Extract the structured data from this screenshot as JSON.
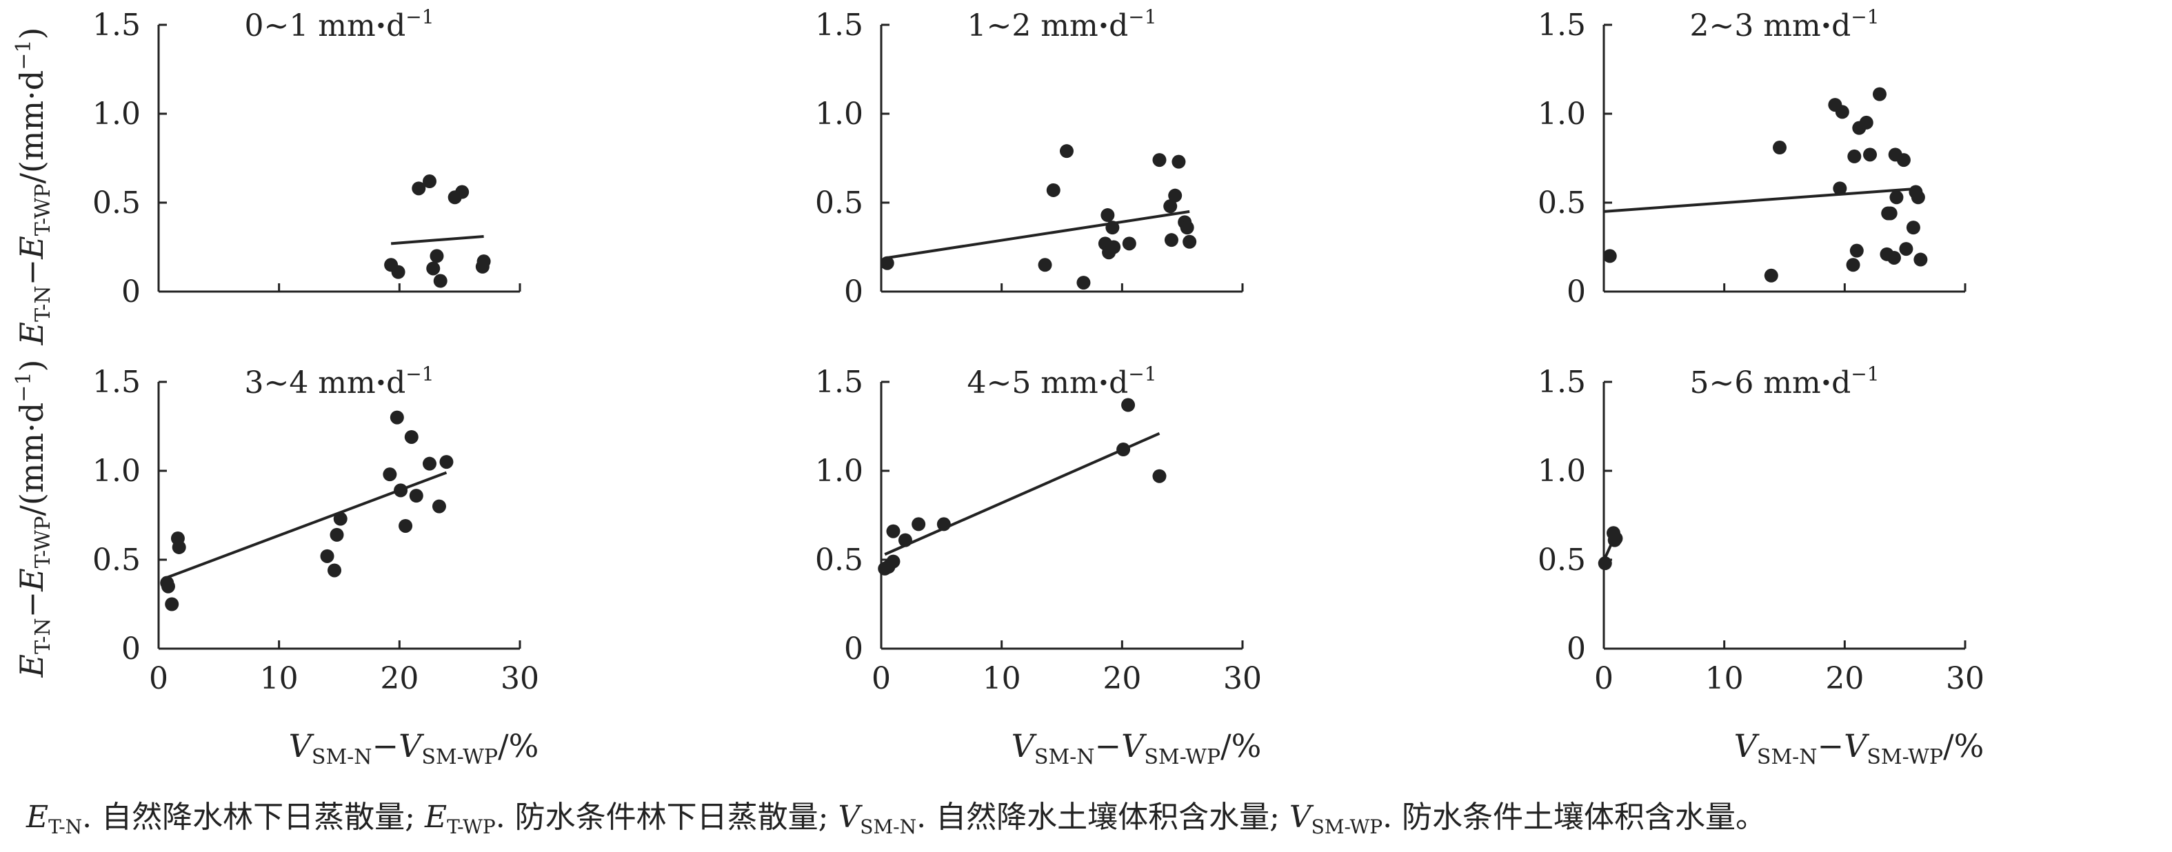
{
  "chart_data": [
    {
      "type": "scatter",
      "title": "0~1 mm·d⁻¹",
      "title_main": "0~1 mm",
      "title_unit": "d",
      "title_sup": "−1",
      "xlim": [
        0,
        30
      ],
      "ylim": [
        0,
        1.5
      ],
      "xticks": [
        "0",
        "10",
        "20",
        "30"
      ],
      "yticks": [
        "0",
        "0.5",
        "1.0",
        "1.5"
      ],
      "points": [
        [
          19.3,
          0.15
        ],
        [
          19.9,
          0.11
        ],
        [
          21.6,
          0.58
        ],
        [
          22.5,
          0.62
        ],
        [
          22.8,
          0.13
        ],
        [
          23.1,
          0.2
        ],
        [
          23.4,
          0.06
        ],
        [
          24.6,
          0.53
        ],
        [
          25.2,
          0.56
        ],
        [
          26.9,
          0.14
        ],
        [
          27.0,
          0.17
        ]
      ],
      "fit": [
        [
          19.3,
          0.27
        ],
        [
          27.0,
          0.31
        ]
      ]
    },
    {
      "type": "scatter",
      "title": "1~2 mm·d⁻¹",
      "title_main": "1~2 mm",
      "title_unit": "d",
      "title_sup": "−1",
      "xlim": [
        0,
        30
      ],
      "ylim": [
        0,
        1.5
      ],
      "xticks": [
        "0",
        "10",
        "20",
        "30"
      ],
      "yticks": [
        "0",
        "0.5",
        "1.0",
        "1.5"
      ],
      "points": [
        [
          0.5,
          0.16
        ],
        [
          13.6,
          0.15
        ],
        [
          14.3,
          0.57
        ],
        [
          15.4,
          0.79
        ],
        [
          16.8,
          0.05
        ],
        [
          18.6,
          0.27
        ],
        [
          18.8,
          0.43
        ],
        [
          18.9,
          0.22
        ],
        [
          19.2,
          0.36
        ],
        [
          19.3,
          0.25
        ],
        [
          20.6,
          0.27
        ],
        [
          23.1,
          0.74
        ],
        [
          24.0,
          0.48
        ],
        [
          24.1,
          0.29
        ],
        [
          24.4,
          0.54
        ],
        [
          24.7,
          0.73
        ],
        [
          25.2,
          0.39
        ],
        [
          25.4,
          0.36
        ],
        [
          25.6,
          0.28
        ]
      ],
      "fit": [
        [
          0.5,
          0.19
        ],
        [
          25.6,
          0.45
        ]
      ]
    },
    {
      "type": "scatter",
      "title": "2~3 mm·d⁻¹",
      "title_main": "2~3 mm",
      "title_unit": "d",
      "title_sup": "−1",
      "xlim": [
        0,
        30
      ],
      "ylim": [
        0,
        1.5
      ],
      "xticks": [
        "0",
        "10",
        "20",
        "30"
      ],
      "yticks": [
        "0",
        "0.5",
        "1.0",
        "1.5"
      ],
      "points": [
        [
          0.5,
          0.2
        ],
        [
          13.9,
          0.09
        ],
        [
          14.6,
          0.81
        ],
        [
          19.2,
          1.05
        ],
        [
          19.6,
          0.58
        ],
        [
          19.8,
          1.01
        ],
        [
          20.7,
          0.15
        ],
        [
          20.8,
          0.76
        ],
        [
          21.0,
          0.23
        ],
        [
          21.2,
          0.92
        ],
        [
          21.8,
          0.95
        ],
        [
          22.1,
          0.77
        ],
        [
          22.9,
          1.11
        ],
        [
          23.5,
          0.21
        ],
        [
          23.6,
          0.44
        ],
        [
          23.8,
          0.44
        ],
        [
          24.1,
          0.19
        ],
        [
          24.2,
          0.77
        ],
        [
          24.3,
          0.53
        ],
        [
          24.9,
          0.74
        ],
        [
          25.1,
          0.24
        ],
        [
          25.7,
          0.36
        ],
        [
          25.9,
          0.56
        ],
        [
          26.1,
          0.53
        ],
        [
          26.3,
          0.18
        ]
      ],
      "fit": [
        [
          0.0,
          0.45
        ],
        [
          26.3,
          0.58
        ]
      ]
    },
    {
      "type": "scatter",
      "title": "3~4 mm·d⁻¹",
      "title_main": "3~4 mm",
      "title_unit": "d",
      "title_sup": "−1",
      "xlim": [
        0,
        30
      ],
      "ylim": [
        0,
        1.5
      ],
      "xticks": [
        "0",
        "10",
        "20",
        "30"
      ],
      "yticks": [
        "0",
        "0.5",
        "1.0",
        "1.5"
      ],
      "points": [
        [
          0.7,
          0.37
        ],
        [
          0.8,
          0.35
        ],
        [
          1.1,
          0.25
        ],
        [
          1.6,
          0.62
        ],
        [
          1.7,
          0.57
        ],
        [
          14.0,
          0.52
        ],
        [
          14.6,
          0.44
        ],
        [
          14.8,
          0.64
        ],
        [
          15.1,
          0.73
        ],
        [
          19.2,
          0.98
        ],
        [
          19.8,
          1.3
        ],
        [
          20.1,
          0.89
        ],
        [
          20.5,
          0.69
        ],
        [
          21.0,
          1.19
        ],
        [
          21.4,
          0.86
        ],
        [
          22.5,
          1.04
        ],
        [
          23.3,
          0.8
        ],
        [
          23.9,
          1.05
        ]
      ],
      "fit": [
        [
          0.7,
          0.4
        ],
        [
          23.9,
          0.99
        ]
      ]
    },
    {
      "type": "scatter",
      "title": "4~5 mm·d⁻¹",
      "title_main": "4~5 mm",
      "title_unit": "d",
      "title_sup": "−1",
      "xlim": [
        0,
        30
      ],
      "ylim": [
        0,
        1.5
      ],
      "xticks": [
        "0",
        "10",
        "20",
        "30"
      ],
      "yticks": [
        "0",
        "0.5",
        "1.0",
        "1.5"
      ],
      "points": [
        [
          0.3,
          0.45
        ],
        [
          0.6,
          0.46
        ],
        [
          1.0,
          0.49
        ],
        [
          1.0,
          0.66
        ],
        [
          2.0,
          0.61
        ],
        [
          3.1,
          0.7
        ],
        [
          5.2,
          0.7
        ],
        [
          20.1,
          1.12
        ],
        [
          20.5,
          1.37
        ],
        [
          23.1,
          0.97
        ]
      ],
      "fit": [
        [
          0.3,
          0.53
        ],
        [
          23.1,
          1.21
        ]
      ]
    },
    {
      "type": "scatter",
      "title": "5~6 mm·d⁻¹",
      "title_main": "5~6 mm",
      "title_unit": "d",
      "title_sup": "−1",
      "xlim": [
        0,
        30
      ],
      "ylim": [
        0,
        1.5
      ],
      "xticks": [
        "0",
        "10",
        "20",
        "30"
      ],
      "yticks": [
        "0",
        "0.5",
        "1.0",
        "1.5"
      ],
      "points": [
        [
          0.1,
          0.48
        ],
        [
          0.8,
          0.65
        ],
        [
          0.9,
          0.61
        ],
        [
          1.0,
          0.62
        ]
      ],
      "fit": [
        [
          0.1,
          0.51
        ],
        [
          0.9,
          0.63
        ]
      ]
    }
  ],
  "axes": {
    "ylabel": {
      "main": "E",
      "sub1": "T-N",
      "dash": "−E",
      "sub2": "T-WP",
      "rest": "/(mm·d",
      "sup": "−1",
      "close": ")"
    },
    "xlabel": {
      "main": "V",
      "sub1": "SM-N",
      "dash": "−V",
      "sub2": "SM-WP",
      "rest": "/%"
    }
  },
  "caption": {
    "items": [
      {
        "sym": "E",
        "sub": "T-N",
        "text": ". 自然降水林下日蒸散量; "
      },
      {
        "sym": "E",
        "sub": "T-WP",
        "text": ". 防水条件林下日蒸散量; "
      },
      {
        "sym": "V",
        "sub": "SM-N",
        "text": ". 自然降水土壤体积含水量; "
      },
      {
        "sym": "V",
        "sub": "SM-WP",
        "text": ". 防水条件土壤体积含水量。"
      }
    ]
  },
  "colors": {
    "ink": "#222222",
    "background": "#ffffff"
  }
}
